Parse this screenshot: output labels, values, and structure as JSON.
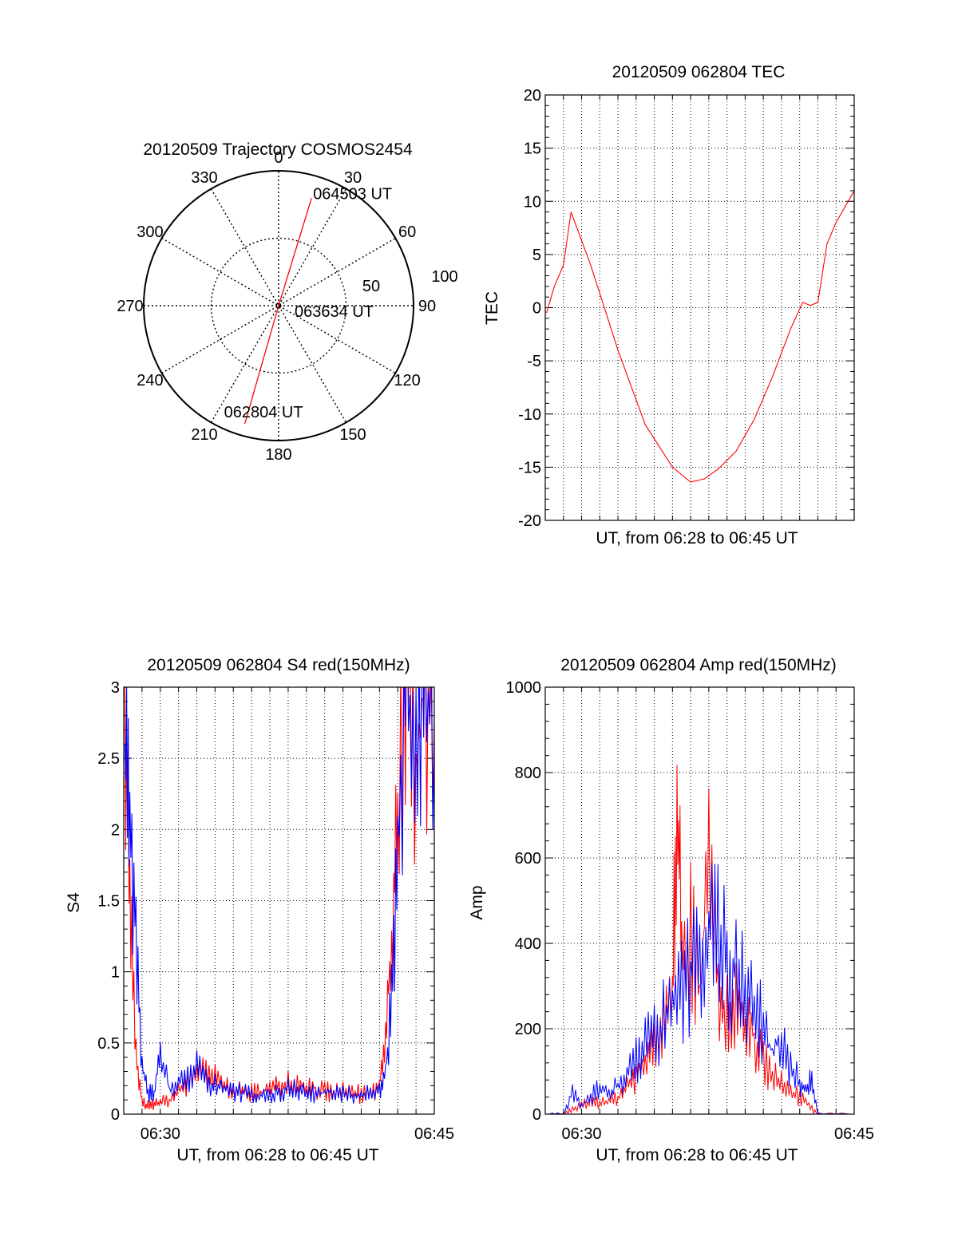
{
  "chart_data": [
    {
      "type": "polar",
      "title": "20120509 Trajectory COSMOS2454",
      "angle_labels": [
        "0",
        "30",
        "60",
        "90",
        "120",
        "150",
        "180",
        "210",
        "240",
        "270",
        "300",
        "330"
      ],
      "radial_labels": [
        "50",
        "100"
      ],
      "grid": true,
      "trajectory": {
        "color": "#ff0000",
        "points": [
          {
            "azimuth": 196,
            "elevation": 8,
            "label": "062804 UT"
          },
          {
            "azimuth": 60,
            "elevation": 90,
            "label": "063634 UT"
          },
          {
            "azimuth": 17,
            "elevation": 15,
            "label": "064503 UT"
          }
        ]
      }
    },
    {
      "type": "line",
      "title": "20120509 062804 TEC",
      "xlabel": "UT, from 06:28 to 06:45 UT",
      "ylabel": "TEC",
      "xlim": [
        "06:28",
        "06:45"
      ],
      "ylim": [
        -20,
        20
      ],
      "yticks": [
        "-20",
        "-15",
        "-10",
        "-5",
        "0",
        "5",
        "10",
        "15",
        "20"
      ],
      "grid": true,
      "series": [
        {
          "color": "#ff0000",
          "x": [
            "06:28:04",
            "06:28:30",
            "06:29:00",
            "06:29:25",
            "06:30:30",
            "06:32:00",
            "06:33:30",
            "06:35:00",
            "06:36:00",
            "06:36:45",
            "06:37:30",
            "06:38:30",
            "06:39:30",
            "06:40:30",
            "06:41:30",
            "06:42:10",
            "06:42:35",
            "06:43:00",
            "06:43:30",
            "06:44:00",
            "06:44:30",
            "06:45:00"
          ],
          "y": [
            -0.5,
            2,
            4,
            9,
            4,
            -4,
            -11,
            -15,
            -16.4,
            -16.1,
            -15.2,
            -13.5,
            -10.5,
            -6.5,
            -2,
            0.5,
            0.2,
            0.5,
            6,
            8,
            9.5,
            11
          ]
        }
      ]
    },
    {
      "type": "line",
      "title": "20120509 062804 S4 red(150MHz)",
      "xlabel": "UT, from 06:28 to 06:45 UT",
      "ylabel": "S4",
      "xlim": [
        "06:28",
        "06:45"
      ],
      "ylim": [
        0,
        3
      ],
      "xticks": [
        "06:30",
        "06:45"
      ],
      "yticks": [
        "0",
        "0.5",
        "1",
        "1.5",
        "2",
        "2.5",
        "3"
      ],
      "grid": true,
      "series": [
        {
          "color": "#ff0000",
          "x": [
            "06:28:04",
            "06:28:20",
            "06:28:40",
            "06:29:00",
            "06:29:20",
            "06:29:40",
            "06:30:00",
            "06:30:30",
            "06:31:00",
            "06:31:30",
            "06:32:00",
            "06:32:30",
            "06:33:00",
            "06:33:30",
            "06:34:00",
            "06:34:30",
            "06:35:00",
            "06:35:30",
            "06:36:00",
            "06:36:30",
            "06:37:00",
            "06:37:30",
            "06:38:00",
            "06:38:30",
            "06:39:00",
            "06:39:30",
            "06:40:00",
            "06:40:30",
            "06:41:00",
            "06:41:30",
            "06:42:00",
            "06:42:20",
            "06:42:40",
            "06:43:00",
            "06:43:30",
            "06:44:00",
            "06:44:30",
            "06:45:00"
          ],
          "y": [
            3.0,
            1.6,
            0.4,
            0.08,
            0.06,
            0.07,
            0.08,
            0.1,
            0.15,
            0.22,
            0.3,
            0.28,
            0.25,
            0.2,
            0.17,
            0.15,
            0.15,
            0.16,
            0.17,
            0.2,
            0.24,
            0.22,
            0.2,
            0.18,
            0.16,
            0.15,
            0.16,
            0.15,
            0.14,
            0.14,
            0.2,
            0.5,
            1.2,
            2.2,
            3.0,
            2.5,
            3.0,
            2.8
          ]
        },
        {
          "color": "#0000ff",
          "x": [
            "06:28:04",
            "06:28:20",
            "06:28:40",
            "06:29:00",
            "06:29:20",
            "06:29:40",
            "06:30:00",
            "06:30:30",
            "06:31:00",
            "06:31:30",
            "06:32:00",
            "06:32:30",
            "06:33:00",
            "06:33:30",
            "06:34:00",
            "06:34:30",
            "06:35:00",
            "06:35:30",
            "06:36:00",
            "06:36:30",
            "06:37:00",
            "06:37:30",
            "06:38:00",
            "06:38:30",
            "06:39:00",
            "06:39:30",
            "06:40:00",
            "06:40:30",
            "06:41:00",
            "06:41:30",
            "06:42:00",
            "06:42:20",
            "06:42:40",
            "06:43:00",
            "06:43:30",
            "06:44:00",
            "06:44:30",
            "06:45:00"
          ],
          "y": [
            2.6,
            2.2,
            1.2,
            0.35,
            0.15,
            0.14,
            0.45,
            0.18,
            0.22,
            0.25,
            0.35,
            0.24,
            0.2,
            0.18,
            0.16,
            0.15,
            0.14,
            0.14,
            0.13,
            0.15,
            0.18,
            0.17,
            0.15,
            0.14,
            0.15,
            0.16,
            0.15,
            0.14,
            0.14,
            0.14,
            0.16,
            0.3,
            0.8,
            1.8,
            3.0,
            2.7,
            3.0,
            2.6
          ]
        }
      ]
    },
    {
      "type": "line",
      "title": "20120509 062804 Amp red(150MHz)",
      "xlabel": "UT, from 06:28 to 06:45 UT",
      "ylabel": "Amp",
      "xlim": [
        "06:28",
        "06:45"
      ],
      "ylim": [
        0,
        1000
      ],
      "xticks": [
        "06:30",
        "06:45"
      ],
      "yticks": [
        "0",
        "200",
        "400",
        "600",
        "800",
        "1000"
      ],
      "grid": true,
      "series": [
        {
          "color": "#ff0000",
          "x": [
            "06:28:04",
            "06:29:00",
            "06:29:30",
            "06:30:00",
            "06:30:30",
            "06:31:00",
            "06:31:30",
            "06:32:00",
            "06:32:30",
            "06:33:00",
            "06:33:30",
            "06:34:00",
            "06:34:30",
            "06:35:00",
            "06:35:15",
            "06:35:30",
            "06:36:00",
            "06:36:30",
            "06:37:00",
            "06:37:30",
            "06:38:00",
            "06:38:30",
            "06:39:00",
            "06:39:30",
            "06:40:00",
            "06:40:30",
            "06:41:00",
            "06:41:30",
            "06:42:00",
            "06:42:30",
            "06:43:00",
            "06:45:00"
          ],
          "y": [
            0,
            0,
            10,
            20,
            30,
            25,
            30,
            40,
            60,
            90,
            120,
            150,
            200,
            280,
            790,
            350,
            420,
            300,
            570,
            300,
            250,
            280,
            220,
            180,
            120,
            90,
            70,
            50,
            40,
            20,
            0,
            0
          ]
        },
        {
          "color": "#0000ff",
          "x": [
            "06:28:04",
            "06:29:00",
            "06:29:30",
            "06:30:00",
            "06:30:30",
            "06:31:00",
            "06:31:30",
            "06:32:00",
            "06:32:30",
            "06:33:00",
            "06:33:30",
            "06:34:00",
            "06:34:30",
            "06:35:00",
            "06:35:30",
            "06:36:00",
            "06:36:30",
            "06:37:00",
            "06:37:30",
            "06:38:00",
            "06:38:30",
            "06:39:00",
            "06:39:30",
            "06:40:00",
            "06:40:30",
            "06:41:00",
            "06:41:30",
            "06:42:00",
            "06:42:20",
            "06:42:40",
            "06:43:00",
            "06:45:00"
          ],
          "y": [
            0,
            0,
            50,
            20,
            40,
            60,
            50,
            70,
            90,
            130,
            170,
            190,
            220,
            260,
            300,
            330,
            360,
            470,
            440,
            350,
            330,
            290,
            250,
            200,
            140,
            180,
            110,
            80,
            60,
            75,
            0,
            0
          ]
        }
      ]
    }
  ]
}
